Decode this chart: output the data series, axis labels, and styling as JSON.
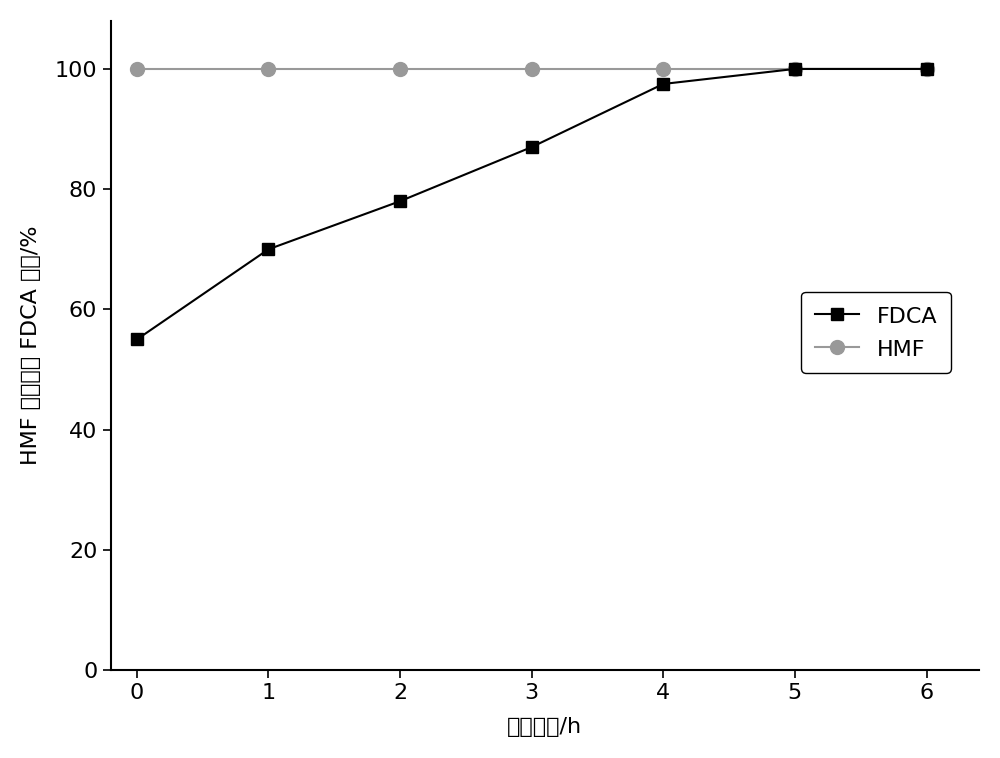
{
  "fdca_x": [
    0,
    1,
    2,
    3,
    4,
    5,
    6
  ],
  "fdca_y": [
    55,
    70,
    78,
    87,
    97.5,
    100,
    100
  ],
  "hmf_x": [
    0,
    1,
    2,
    3,
    4,
    5,
    6
  ],
  "hmf_y": [
    100,
    100,
    100,
    100,
    100,
    100,
    100
  ],
  "fdca_color": "#000000",
  "hmf_color": "#999999",
  "fdca_label": "FDCA",
  "hmf_label": "HMF",
  "xlabel": "反应时间/h",
  "ylabel": "HMF 转化率和 FDCA 产率/%",
  "xlim": [
    -0.2,
    6.4
  ],
  "ylim": [
    0,
    108
  ],
  "yticks": [
    0,
    20,
    40,
    60,
    80,
    100
  ],
  "xticks": [
    0,
    1,
    2,
    3,
    4,
    5,
    6
  ],
  "figsize": [
    10.0,
    7.58
  ],
  "dpi": 100,
  "linewidth": 1.5,
  "markersize_fdca": 8,
  "markersize_hmf": 10,
  "tick_labelsize": 16,
  "axis_labelsize": 16
}
